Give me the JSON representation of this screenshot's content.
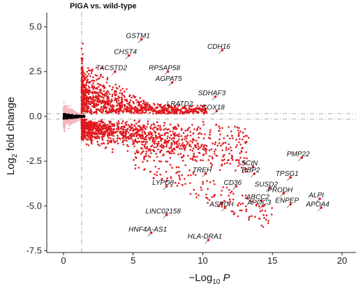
{
  "chart_data": {
    "type": "scatter",
    "title": "PIGA vs. wild-type",
    "xlabel": "−Log10 P",
    "xlabel_parts": {
      "prefix": "−Log",
      "sub": "10",
      "suffix": " P"
    },
    "ylabel": "Log2 fold change",
    "ylabel_parts": {
      "prefix": "Log",
      "sub": "2",
      "suffix": " fold change"
    },
    "xlim": [
      -1.2,
      21
    ],
    "ylim": [
      -7.6,
      5.8
    ],
    "x_ticks": [
      0,
      5,
      10,
      15,
      20
    ],
    "x_tick_labels": [
      "0",
      "5",
      "10",
      "15",
      "20"
    ],
    "y_ticks": [
      5.0,
      2.5,
      0.0,
      -2.5,
      -5.0,
      -7.5
    ],
    "y_tick_labels": [
      "5.0",
      "2.5",
      "0.0",
      "-2.5",
      "-5.0",
      "-7.5"
    ],
    "threshold_lines": {
      "vertical_x": 1.3,
      "horizontal_y": [
        0.15,
        -0.15
      ]
    },
    "colors": {
      "significant": "#e0191e",
      "not_significant": "#f4b6bd",
      "core": "#000000",
      "guide": "#aaaaaa"
    },
    "labeled_genes": [
      {
        "label": "GSTM1",
        "x": 5.6,
        "y": 4.3
      },
      {
        "label": "CHST4",
        "x": 4.7,
        "y": 3.4
      },
      {
        "label": "CDH16",
        "x": 11.4,
        "y": 3.7
      },
      {
        "label": "TACSTD2",
        "x": 3.7,
        "y": 2.5
      },
      {
        "label": "RPSAP58",
        "x": 7.5,
        "y": 2.5
      },
      {
        "label": "AGPAT5",
        "x": 7.8,
        "y": 1.9
      },
      {
        "label": "SDHAF3",
        "x": 10.9,
        "y": 1.1
      },
      {
        "label": "LRATD2",
        "x": 8.6,
        "y": 0.5
      },
      {
        "label": "COX18",
        "x": 11.0,
        "y": 0.3
      },
      {
        "label": "PMP22",
        "x": 17.1,
        "y": -2.3
      },
      {
        "label": "SCIN",
        "x": 13.6,
        "y": -2.8
      },
      {
        "label": "TREH",
        "x": 10.2,
        "y": -3.2
      },
      {
        "label": "RBP2",
        "x": 13.7,
        "y": -3.2
      },
      {
        "label": "TPSG1",
        "x": 16.3,
        "y": -3.4
      },
      {
        "label": "LYPD8",
        "x": 7.4,
        "y": -3.9
      },
      {
        "label": "CD36",
        "x": 12.4,
        "y": -3.9
      },
      {
        "label": "SUSD2",
        "x": 14.8,
        "y": -4.0
      },
      {
        "label": "PRODH",
        "x": 15.8,
        "y": -4.3
      },
      {
        "label": "ALPI",
        "x": 18.4,
        "y": -4.6
      },
      {
        "label": "ABCC2",
        "x": 14.2,
        "y": -4.7
      },
      {
        "label": "APOC3",
        "x": 14.3,
        "y": -5.0
      },
      {
        "label": "ENPEP",
        "x": 16.3,
        "y": -4.9
      },
      {
        "label": "ASPDH",
        "x": 11.6,
        "y": -5.1
      },
      {
        "label": "APOA4",
        "x": 18.5,
        "y": -5.1
      },
      {
        "label": "LINC02158",
        "x": 7.4,
        "y": -5.5
      },
      {
        "label": "HNF4A-AS1",
        "x": 6.3,
        "y": -6.5
      },
      {
        "label": "HLA-DRA1",
        "x": 10.4,
        "y": -6.9
      }
    ]
  }
}
